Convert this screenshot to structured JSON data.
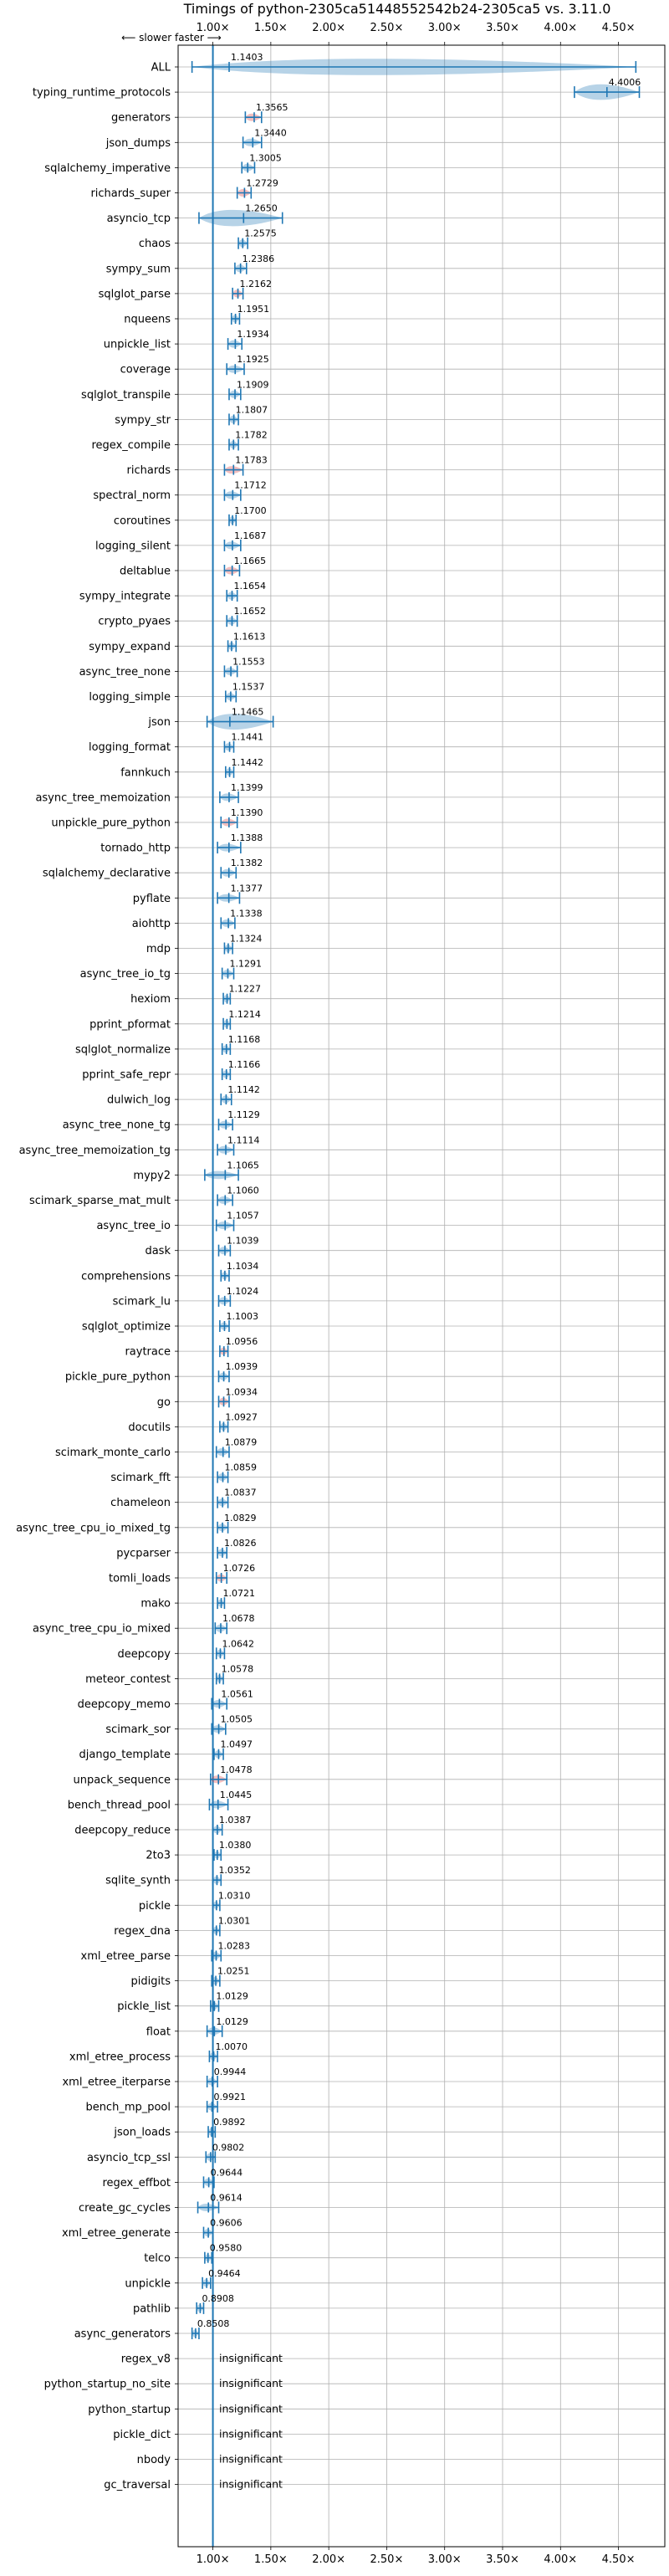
{
  "chart_data": {
    "type": "violin",
    "title": "Timings of python-2305ca51448552542b24-2305ca5 vs. 3.11.0",
    "direction_label": "⟵ slower  faster ⟶",
    "xlim": [
      0.7,
      4.9
    ],
    "xticks": [
      "1.00×",
      "1.50×",
      "2.00×",
      "2.50×",
      "3.00×",
      "3.50×",
      "4.00×",
      "4.50×"
    ],
    "xtick_values": [
      1.0,
      1.5,
      2.0,
      2.5,
      3.0,
      3.5,
      4.0,
      4.5
    ],
    "grid": true,
    "colors": {
      "violin": "#1f77b4",
      "highlight": "#d62728",
      "grid": "#b0b0b0"
    },
    "benchmarks": [
      {
        "name": "ALL",
        "value": 1.1403,
        "label": "1.1403",
        "lo": 0.82,
        "hi": 4.65,
        "hl": false
      },
      {
        "name": "typing_runtime_protocols",
        "value": 4.4006,
        "label": "4.4006",
        "lo": 4.12,
        "hi": 4.68,
        "hl": false
      },
      {
        "name": "generators",
        "value": 1.3565,
        "label": "1.3565",
        "lo": 1.28,
        "hi": 1.42,
        "hl": true
      },
      {
        "name": "json_dumps",
        "value": 1.344,
        "label": "1.3440",
        "lo": 1.26,
        "hi": 1.42,
        "hl": false
      },
      {
        "name": "sqlalchemy_imperative",
        "value": 1.3005,
        "label": "1.3005",
        "lo": 1.25,
        "hi": 1.36,
        "hl": false
      },
      {
        "name": "richards_super",
        "value": 1.2729,
        "label": "1.2729",
        "lo": 1.21,
        "hi": 1.33,
        "hl": true
      },
      {
        "name": "asyncio_tcp",
        "value": 1.265,
        "label": "1.2650",
        "lo": 0.88,
        "hi": 1.6,
        "hl": false
      },
      {
        "name": "chaos",
        "value": 1.2575,
        "label": "1.2575",
        "lo": 1.22,
        "hi": 1.3,
        "hl": false
      },
      {
        "name": "sympy_sum",
        "value": 1.2386,
        "label": "1.2386",
        "lo": 1.19,
        "hi": 1.29,
        "hl": false
      },
      {
        "name": "sqlglot_parse",
        "value": 1.2162,
        "label": "1.2162",
        "lo": 1.17,
        "hi": 1.26,
        "hl": true
      },
      {
        "name": "nqueens",
        "value": 1.1951,
        "label": "1.1951",
        "lo": 1.16,
        "hi": 1.23,
        "hl": false
      },
      {
        "name": "unpickle_list",
        "value": 1.1934,
        "label": "1.1934",
        "lo": 1.13,
        "hi": 1.25,
        "hl": false
      },
      {
        "name": "coverage",
        "value": 1.1925,
        "label": "1.1925",
        "lo": 1.12,
        "hi": 1.27,
        "hl": false
      },
      {
        "name": "sqlglot_transpile",
        "value": 1.1909,
        "label": "1.1909",
        "lo": 1.14,
        "hi": 1.24,
        "hl": false
      },
      {
        "name": "sympy_str",
        "value": 1.1807,
        "label": "1.1807",
        "lo": 1.14,
        "hi": 1.22,
        "hl": false
      },
      {
        "name": "regex_compile",
        "value": 1.1782,
        "label": "1.1782",
        "lo": 1.14,
        "hi": 1.22,
        "hl": false
      },
      {
        "name": "richards",
        "value": 1.1783,
        "label": "1.1783",
        "lo": 1.1,
        "hi": 1.26,
        "hl": true
      },
      {
        "name": "spectral_norm",
        "value": 1.1712,
        "label": "1.1712",
        "lo": 1.1,
        "hi": 1.24,
        "hl": false
      },
      {
        "name": "coroutines",
        "value": 1.17,
        "label": "1.1700",
        "lo": 1.14,
        "hi": 1.2,
        "hl": false
      },
      {
        "name": "logging_silent",
        "value": 1.1687,
        "label": "1.1687",
        "lo": 1.1,
        "hi": 1.24,
        "hl": false
      },
      {
        "name": "deltablue",
        "value": 1.1665,
        "label": "1.1665",
        "lo": 1.1,
        "hi": 1.23,
        "hl": true
      },
      {
        "name": "sympy_integrate",
        "value": 1.1654,
        "label": "1.1654",
        "lo": 1.12,
        "hi": 1.21,
        "hl": false
      },
      {
        "name": "crypto_pyaes",
        "value": 1.1652,
        "label": "1.1652",
        "lo": 1.12,
        "hi": 1.21,
        "hl": false
      },
      {
        "name": "sympy_expand",
        "value": 1.1613,
        "label": "1.1613",
        "lo": 1.13,
        "hi": 1.2,
        "hl": false
      },
      {
        "name": "async_tree_none",
        "value": 1.1553,
        "label": "1.1553",
        "lo": 1.1,
        "hi": 1.21,
        "hl": false
      },
      {
        "name": "logging_simple",
        "value": 1.1537,
        "label": "1.1537",
        "lo": 1.11,
        "hi": 1.2,
        "hl": false
      },
      {
        "name": "json",
        "value": 1.1465,
        "label": "1.1465",
        "lo": 0.95,
        "hi": 1.52,
        "hl": false
      },
      {
        "name": "logging_format",
        "value": 1.1441,
        "label": "1.1441",
        "lo": 1.1,
        "hi": 1.18,
        "hl": false
      },
      {
        "name": "fannkuch",
        "value": 1.1442,
        "label": "1.1442",
        "lo": 1.11,
        "hi": 1.18,
        "hl": false
      },
      {
        "name": "async_tree_memoization",
        "value": 1.1399,
        "label": "1.1399",
        "lo": 1.06,
        "hi": 1.22,
        "hl": false
      },
      {
        "name": "unpickle_pure_python",
        "value": 1.139,
        "label": "1.1390",
        "lo": 1.07,
        "hi": 1.21,
        "hl": true
      },
      {
        "name": "tornado_http",
        "value": 1.1388,
        "label": "1.1388",
        "lo": 1.04,
        "hi": 1.24,
        "hl": false
      },
      {
        "name": "sqlalchemy_declarative",
        "value": 1.1382,
        "label": "1.1382",
        "lo": 1.07,
        "hi": 1.2,
        "hl": false
      },
      {
        "name": "pyflate",
        "value": 1.1377,
        "label": "1.1377",
        "lo": 1.04,
        "hi": 1.23,
        "hl": false
      },
      {
        "name": "aiohttp",
        "value": 1.1338,
        "label": "1.1338",
        "lo": 1.07,
        "hi": 1.19,
        "hl": false
      },
      {
        "name": "mdp",
        "value": 1.1324,
        "label": "1.1324",
        "lo": 1.1,
        "hi": 1.17,
        "hl": false
      },
      {
        "name": "async_tree_io_tg",
        "value": 1.1291,
        "label": "1.1291",
        "lo": 1.08,
        "hi": 1.18,
        "hl": false
      },
      {
        "name": "hexiom",
        "value": 1.1227,
        "label": "1.1227",
        "lo": 1.09,
        "hi": 1.15,
        "hl": false
      },
      {
        "name": "pprint_pformat",
        "value": 1.1214,
        "label": "1.1214",
        "lo": 1.09,
        "hi": 1.15,
        "hl": false
      },
      {
        "name": "sqlglot_normalize",
        "value": 1.1168,
        "label": "1.1168",
        "lo": 1.08,
        "hi": 1.15,
        "hl": false
      },
      {
        "name": "pprint_safe_repr",
        "value": 1.1166,
        "label": "1.1166",
        "lo": 1.08,
        "hi": 1.15,
        "hl": false
      },
      {
        "name": "dulwich_log",
        "value": 1.1142,
        "label": "1.1142",
        "lo": 1.07,
        "hi": 1.16,
        "hl": false
      },
      {
        "name": "async_tree_none_tg",
        "value": 1.1129,
        "label": "1.1129",
        "lo": 1.05,
        "hi": 1.17,
        "hl": false
      },
      {
        "name": "async_tree_memoization_tg",
        "value": 1.1114,
        "label": "1.1114",
        "lo": 1.04,
        "hi": 1.18,
        "hl": false
      },
      {
        "name": "mypy2",
        "value": 1.1065,
        "label": "1.1065",
        "lo": 0.93,
        "hi": 1.22,
        "hl": false
      },
      {
        "name": "scimark_sparse_mat_mult",
        "value": 1.106,
        "label": "1.1060",
        "lo": 1.04,
        "hi": 1.17,
        "hl": false
      },
      {
        "name": "async_tree_io",
        "value": 1.1057,
        "label": "1.1057",
        "lo": 1.03,
        "hi": 1.18,
        "hl": false
      },
      {
        "name": "dask",
        "value": 1.1039,
        "label": "1.1039",
        "lo": 1.05,
        "hi": 1.15,
        "hl": false
      },
      {
        "name": "comprehensions",
        "value": 1.1034,
        "label": "1.1034",
        "lo": 1.07,
        "hi": 1.14,
        "hl": false
      },
      {
        "name": "scimark_lu",
        "value": 1.1024,
        "label": "1.1024",
        "lo": 1.05,
        "hi": 1.15,
        "hl": false
      },
      {
        "name": "sqlglot_optimize",
        "value": 1.1003,
        "label": "1.1003",
        "lo": 1.06,
        "hi": 1.14,
        "hl": false
      },
      {
        "name": "raytrace",
        "value": 1.0956,
        "label": "1.0956",
        "lo": 1.06,
        "hi": 1.13,
        "hl": true
      },
      {
        "name": "pickle_pure_python",
        "value": 1.0939,
        "label": "1.0939",
        "lo": 1.05,
        "hi": 1.14,
        "hl": false
      },
      {
        "name": "go",
        "value": 1.0934,
        "label": "1.0934",
        "lo": 1.05,
        "hi": 1.14,
        "hl": true
      },
      {
        "name": "docutils",
        "value": 1.0927,
        "label": "1.0927",
        "lo": 1.06,
        "hi": 1.13,
        "hl": false
      },
      {
        "name": "scimark_monte_carlo",
        "value": 1.0879,
        "label": "1.0879",
        "lo": 1.03,
        "hi": 1.14,
        "hl": false
      },
      {
        "name": "scimark_fft",
        "value": 1.0859,
        "label": "1.0859",
        "lo": 1.04,
        "hi": 1.13,
        "hl": false
      },
      {
        "name": "chameleon",
        "value": 1.0837,
        "label": "1.0837",
        "lo": 1.04,
        "hi": 1.13,
        "hl": false
      },
      {
        "name": "async_tree_cpu_io_mixed_tg",
        "value": 1.0829,
        "label": "1.0829",
        "lo": 1.04,
        "hi": 1.13,
        "hl": false
      },
      {
        "name": "pycparser",
        "value": 1.0826,
        "label": "1.0826",
        "lo": 1.04,
        "hi": 1.12,
        "hl": false
      },
      {
        "name": "tomli_loads",
        "value": 1.0726,
        "label": "1.0726",
        "lo": 1.03,
        "hi": 1.12,
        "hl": true
      },
      {
        "name": "mako",
        "value": 1.0721,
        "label": "1.0721",
        "lo": 1.04,
        "hi": 1.1,
        "hl": false
      },
      {
        "name": "async_tree_cpu_io_mixed",
        "value": 1.0678,
        "label": "1.0678",
        "lo": 1.02,
        "hi": 1.12,
        "hl": false
      },
      {
        "name": "deepcopy",
        "value": 1.0642,
        "label": "1.0642",
        "lo": 1.03,
        "hi": 1.1,
        "hl": false
      },
      {
        "name": "meteor_contest",
        "value": 1.0578,
        "label": "1.0578",
        "lo": 1.03,
        "hi": 1.09,
        "hl": false
      },
      {
        "name": "deepcopy_memo",
        "value": 1.0561,
        "label": "1.0561",
        "lo": 0.99,
        "hi": 1.12,
        "hl": false
      },
      {
        "name": "scimark_sor",
        "value": 1.0505,
        "label": "1.0505",
        "lo": 0.99,
        "hi": 1.11,
        "hl": false
      },
      {
        "name": "django_template",
        "value": 1.0497,
        "label": "1.0497",
        "lo": 1.01,
        "hi": 1.09,
        "hl": false
      },
      {
        "name": "unpack_sequence",
        "value": 1.0478,
        "label": "1.0478",
        "lo": 0.98,
        "hi": 1.12,
        "hl": true
      },
      {
        "name": "bench_thread_pool",
        "value": 1.0445,
        "label": "1.0445",
        "lo": 0.97,
        "hi": 1.13,
        "hl": false
      },
      {
        "name": "deepcopy_reduce",
        "value": 1.0387,
        "label": "1.0387",
        "lo": 1.0,
        "hi": 1.08,
        "hl": false
      },
      {
        "name": "2to3",
        "value": 1.038,
        "label": "1.0380",
        "lo": 1.01,
        "hi": 1.07,
        "hl": false
      },
      {
        "name": "sqlite_synth",
        "value": 1.0352,
        "label": "1.0352",
        "lo": 1.0,
        "hi": 1.07,
        "hl": false
      },
      {
        "name": "pickle",
        "value": 1.031,
        "label": "1.0310",
        "lo": 1.0,
        "hi": 1.06,
        "hl": false
      },
      {
        "name": "regex_dna",
        "value": 1.0301,
        "label": "1.0301",
        "lo": 1.0,
        "hi": 1.06,
        "hl": false
      },
      {
        "name": "xml_etree_parse",
        "value": 1.0283,
        "label": "1.0283",
        "lo": 0.99,
        "hi": 1.07,
        "hl": false
      },
      {
        "name": "pidigits",
        "value": 1.0251,
        "label": "1.0251",
        "lo": 0.99,
        "hi": 1.06,
        "hl": false
      },
      {
        "name": "pickle_list",
        "value": 1.0129,
        "label": "1.0129",
        "lo": 0.98,
        "hi": 1.05,
        "hl": false
      },
      {
        "name": "float",
        "value": 1.0129,
        "label": "1.0129",
        "lo": 0.95,
        "hi": 1.08,
        "hl": false
      },
      {
        "name": "xml_etree_process",
        "value": 1.007,
        "label": "1.0070",
        "lo": 0.97,
        "hi": 1.04,
        "hl": false
      },
      {
        "name": "xml_etree_iterparse",
        "value": 0.9944,
        "label": "0.9944",
        "lo": 0.95,
        "hi": 1.04,
        "hl": false
      },
      {
        "name": "bench_mp_pool",
        "value": 0.9921,
        "label": "0.9921",
        "lo": 0.95,
        "hi": 1.04,
        "hl": false
      },
      {
        "name": "json_loads",
        "value": 0.9892,
        "label": "0.9892",
        "lo": 0.96,
        "hi": 1.02,
        "hl": false
      },
      {
        "name": "asyncio_tcp_ssl",
        "value": 0.9802,
        "label": "0.9802",
        "lo": 0.94,
        "hi": 1.02,
        "hl": false
      },
      {
        "name": "regex_effbot",
        "value": 0.9644,
        "label": "0.9644",
        "lo": 0.92,
        "hi": 1.01,
        "hl": false
      },
      {
        "name": "create_gc_cycles",
        "value": 0.9614,
        "label": "0.9614",
        "lo": 0.87,
        "hi": 1.05,
        "hl": false
      },
      {
        "name": "xml_etree_generate",
        "value": 0.9606,
        "label": "0.9606",
        "lo": 0.92,
        "hi": 1.0,
        "hl": false
      },
      {
        "name": "telco",
        "value": 0.958,
        "label": "0.9580",
        "lo": 0.93,
        "hi": 0.99,
        "hl": false
      },
      {
        "name": "unpickle",
        "value": 0.9464,
        "label": "0.9464",
        "lo": 0.91,
        "hi": 0.98,
        "hl": false
      },
      {
        "name": "pathlib",
        "value": 0.8908,
        "label": "0.8908",
        "lo": 0.86,
        "hi": 0.92,
        "hl": false
      },
      {
        "name": "async_generators",
        "value": 0.8508,
        "label": "0.8508",
        "lo": 0.82,
        "hi": 0.88,
        "hl": false
      },
      {
        "name": "regex_v8",
        "value": null,
        "label": "insignificant",
        "hl": false
      },
      {
        "name": "python_startup_no_site",
        "value": null,
        "label": "insignificant",
        "hl": false
      },
      {
        "name": "python_startup",
        "value": null,
        "label": "insignificant",
        "hl": false
      },
      {
        "name": "pickle_dict",
        "value": null,
        "label": "insignificant",
        "hl": false
      },
      {
        "name": "nbody",
        "value": null,
        "label": "insignificant",
        "hl": false
      },
      {
        "name": "gc_traversal",
        "value": null,
        "label": "insignificant",
        "hl": false
      }
    ]
  }
}
